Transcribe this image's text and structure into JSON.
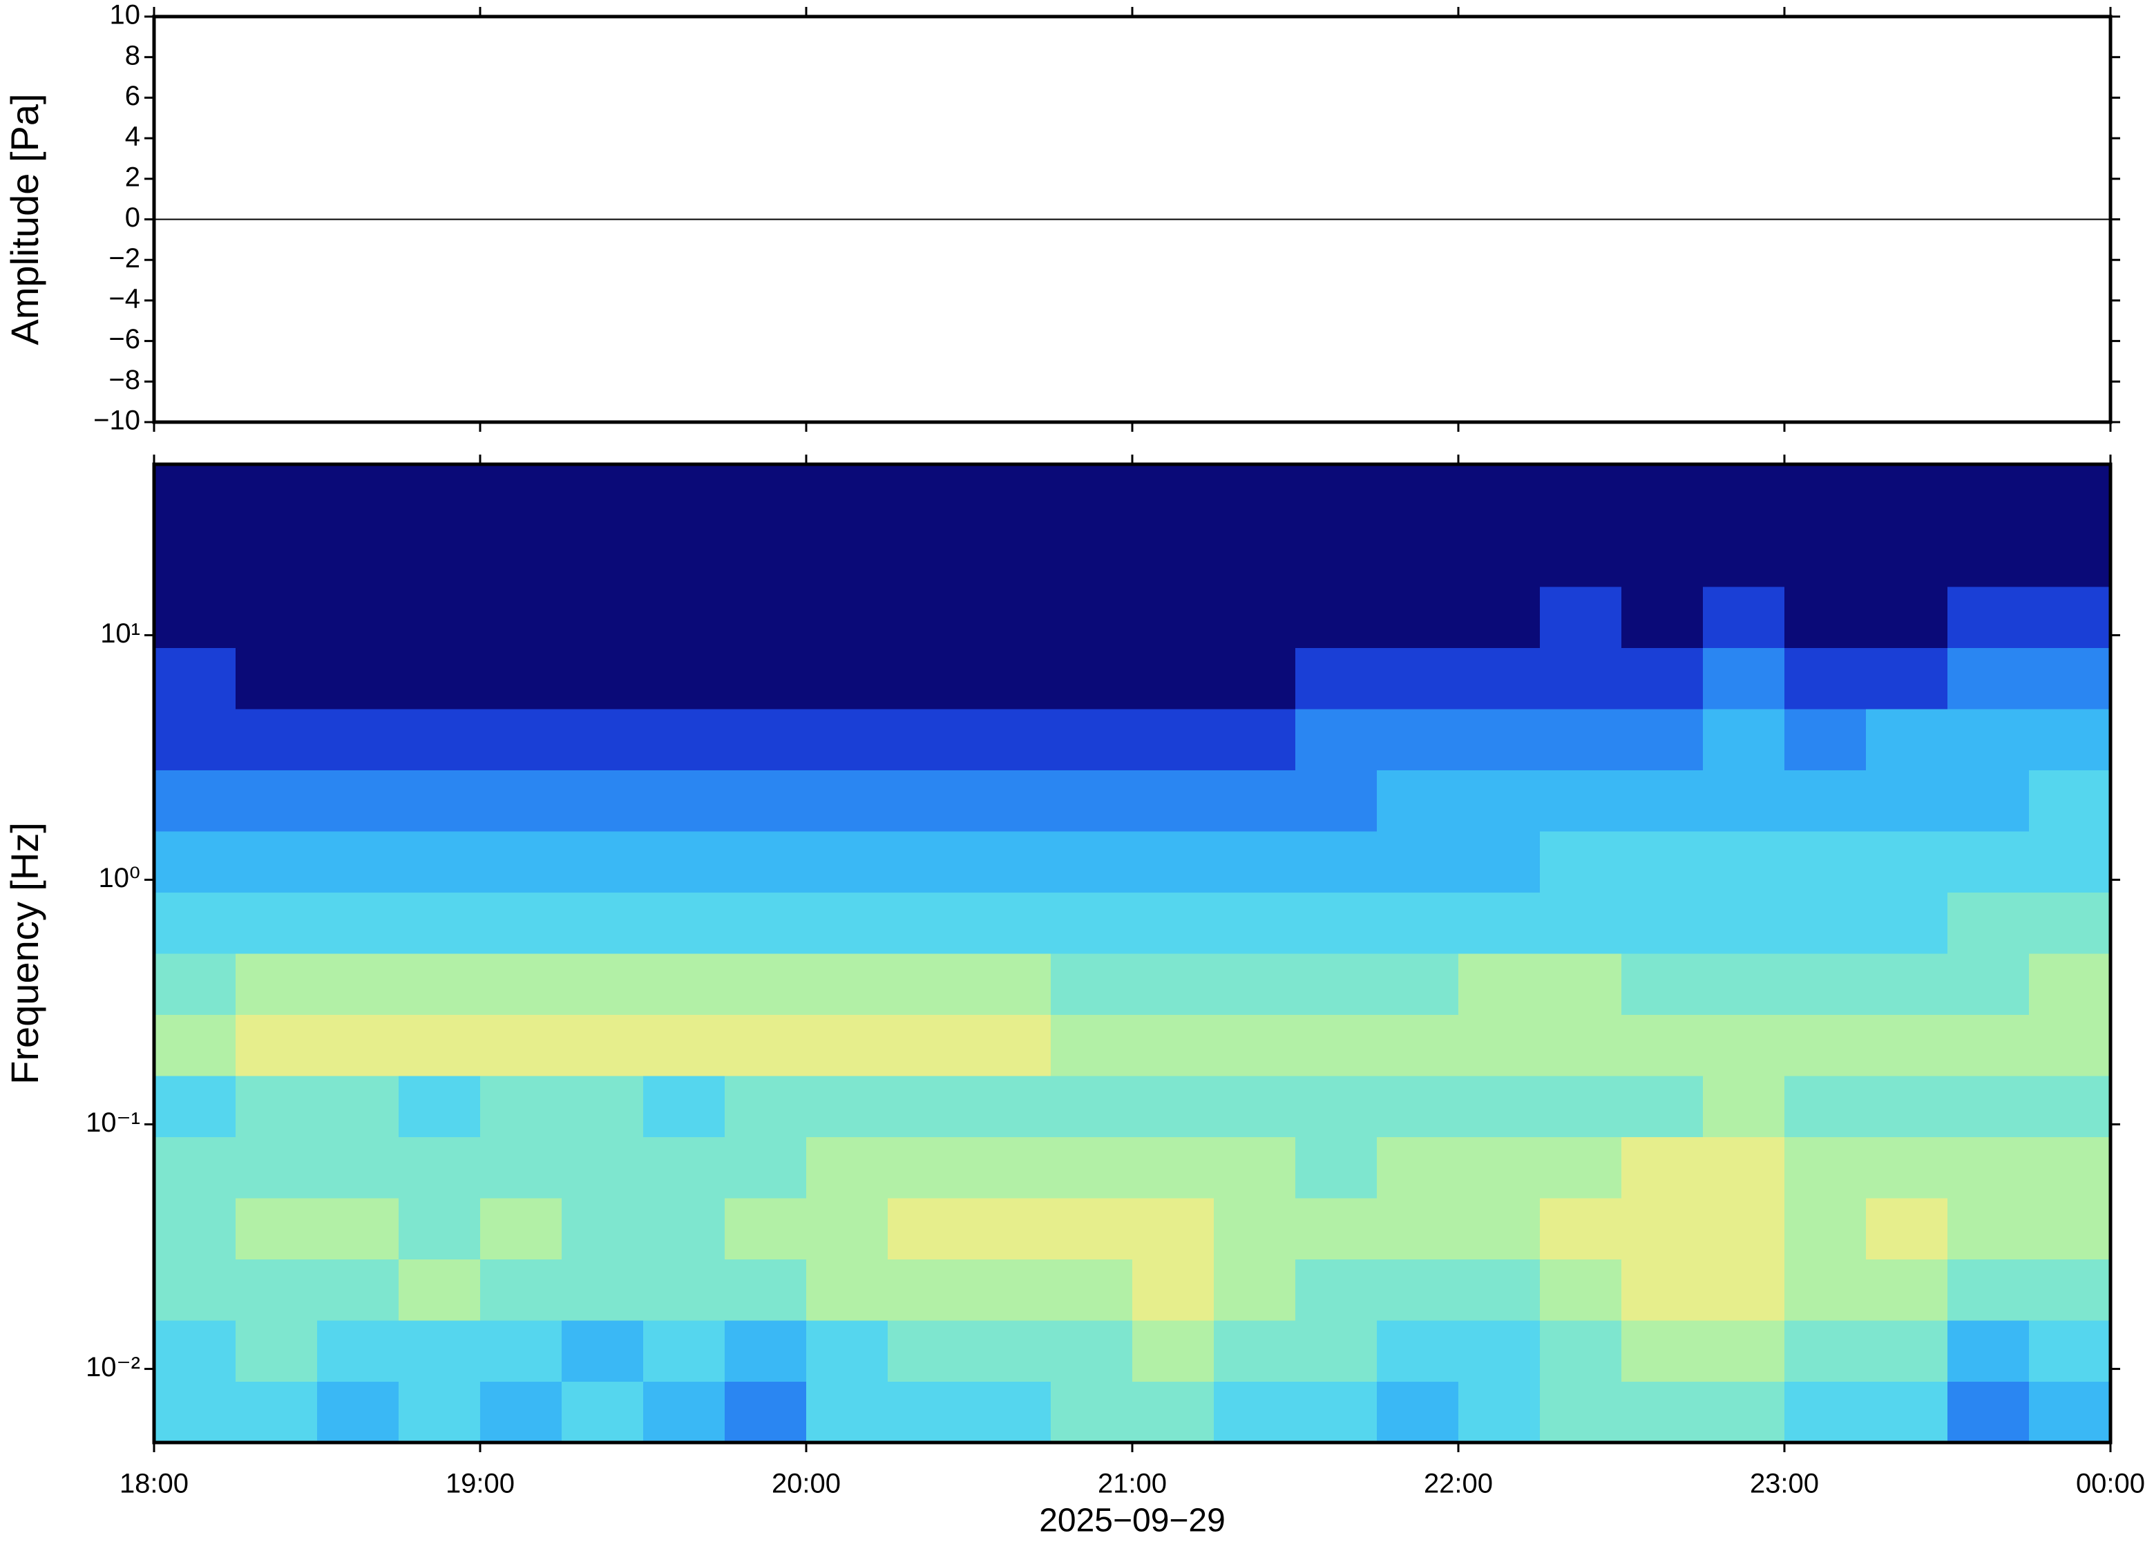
{
  "chart_data": [
    {
      "type": "line",
      "ylabel": "Amplitude [Pa]",
      "color": "#000000",
      "x": [
        18,
        19,
        20,
        21,
        22,
        23,
        24
      ],
      "values": [
        0,
        0,
        0,
        0,
        0,
        0,
        0
      ],
      "xlim": [
        18,
        24
      ],
      "xticks": [
        18,
        19,
        20,
        21,
        22,
        23,
        24
      ],
      "ylim": [
        -10,
        10
      ],
      "yticks": [
        {
          "value": -10,
          "label": "−10"
        },
        {
          "value": -8,
          "label": "−8"
        },
        {
          "value": -6,
          "label": "−6"
        },
        {
          "value": -4,
          "label": "−4"
        },
        {
          "value": -2,
          "label": "−2"
        },
        0,
        2,
        4,
        6,
        8,
        10
      ]
    },
    {
      "type": "heatmap",
      "ylabel": "Frequency [Hz]",
      "xlabel": "2025−09−29",
      "ylog": true,
      "xlim": [
        18,
        24
      ],
      "xticks": [
        {
          "value": 18,
          "label": "18:00"
        },
        {
          "value": 19,
          "label": "19:00"
        },
        {
          "value": 20,
          "label": "20:00"
        },
        {
          "value": 21,
          "label": "21:00"
        },
        {
          "value": 22,
          "label": "22:00"
        },
        {
          "value": 23,
          "label": "23:00"
        },
        {
          "value": 24,
          "label": "00:00"
        }
      ],
      "ylim": [
        0.005,
        50
      ],
      "yticks": [
        {
          "value": 0.01,
          "label": "10⁻²"
        },
        {
          "value": 0.1,
          "label": "10⁻¹"
        },
        {
          "value": 1,
          "label": "10⁰"
        },
        {
          "value": 10,
          "label": "10¹"
        }
      ],
      "colormap": [
        "#0a0a78",
        "#1a3fd6",
        "#2a86f2",
        "#3ab8f5",
        "#55d6ee",
        "#7ee6cf",
        "#b2f0a6",
        "#e6ee8c"
      ],
      "x_edges": [
        18,
        18.25,
        18.5,
        18.75,
        19,
        19.25,
        19.5,
        19.75,
        20,
        20.25,
        20.5,
        20.75,
        21,
        21.25,
        21.5,
        21.75,
        22,
        22.25,
        22.5,
        22.75,
        23,
        23.25,
        23.5,
        23.75,
        24
      ],
      "y_edges": [
        0.005,
        0.0089,
        0.0158,
        0.0281,
        0.05,
        0.089,
        0.158,
        0.281,
        0.5,
        0.889,
        1.58,
        2.81,
        5,
        8.89,
        15.8,
        28.1,
        50
      ],
      "values": [
        [
          4,
          4,
          3,
          4,
          3,
          4,
          3,
          2,
          4,
          4,
          4,
          5,
          5,
          4,
          4,
          3,
          4,
          5,
          5,
          5,
          4,
          4,
          2,
          3
        ],
        [
          4,
          5,
          4,
          4,
          4,
          3,
          4,
          3,
          4,
          5,
          5,
          5,
          6,
          5,
          5,
          4,
          4,
          5,
          6,
          6,
          5,
          5,
          3,
          4
        ],
        [
          5,
          5,
          5,
          6,
          5,
          5,
          5,
          5,
          6,
          6,
          6,
          6,
          7,
          6,
          5,
          5,
          5,
          6,
          7,
          7,
          6,
          6,
          5,
          5
        ],
        [
          5,
          6,
          6,
          5,
          6,
          5,
          5,
          6,
          6,
          7,
          7,
          7,
          7,
          6,
          6,
          6,
          6,
          7,
          7,
          7,
          6,
          7,
          6,
          6
        ],
        [
          5,
          5,
          5,
          5,
          5,
          5,
          5,
          5,
          6,
          6,
          6,
          6,
          6,
          6,
          5,
          6,
          6,
          6,
          7,
          7,
          6,
          6,
          6,
          6
        ],
        [
          4,
          5,
          5,
          4,
          5,
          5,
          4,
          5,
          5,
          5,
          5,
          5,
          5,
          5,
          5,
          5,
          5,
          5,
          5,
          6,
          5,
          5,
          5,
          5
        ],
        [
          6,
          7,
          7,
          7,
          7,
          7,
          7,
          7,
          7,
          7,
          7,
          6,
          6,
          6,
          6,
          6,
          6,
          6,
          6,
          6,
          6,
          6,
          6,
          6
        ],
        [
          5,
          6,
          6,
          6,
          6,
          6,
          6,
          6,
          6,
          6,
          6,
          5,
          5,
          5,
          5,
          5,
          6,
          6,
          5,
          5,
          5,
          5,
          5,
          6
        ],
        [
          4,
          4,
          4,
          4,
          4,
          4,
          4,
          4,
          4,
          4,
          4,
          4,
          4,
          4,
          4,
          4,
          4,
          4,
          4,
          4,
          4,
          4,
          5,
          5
        ],
        [
          3,
          3,
          3,
          3,
          3,
          3,
          3,
          3,
          3,
          3,
          3,
          3,
          3,
          3,
          3,
          3,
          3,
          4,
          4,
          4,
          4,
          4,
          4,
          4
        ],
        [
          2,
          2,
          2,
          2,
          2,
          2,
          2,
          2,
          2,
          2,
          2,
          2,
          2,
          2,
          2,
          3,
          3,
          3,
          3,
          3,
          3,
          3,
          3,
          4
        ],
        [
          1,
          1,
          1,
          1,
          1,
          1,
          1,
          1,
          1,
          1,
          1,
          1,
          1,
          1,
          2,
          2,
          2,
          2,
          2,
          3,
          2,
          3,
          3,
          3
        ],
        [
          1,
          0,
          0,
          0,
          0,
          0,
          0,
          0,
          0,
          0,
          0,
          0,
          0,
          0,
          1,
          1,
          1,
          1,
          1,
          2,
          1,
          1,
          2,
          2
        ],
        [
          0,
          0,
          0,
          0,
          0,
          0,
          0,
          0,
          0,
          0,
          0,
          0,
          0,
          0,
          0,
          0,
          0,
          1,
          0,
          1,
          0,
          0,
          1,
          1
        ],
        [
          0,
          0,
          0,
          0,
          0,
          0,
          0,
          0,
          0,
          0,
          0,
          0,
          0,
          0,
          0,
          0,
          0,
          0,
          0,
          0,
          0,
          0,
          0,
          0
        ],
        [
          0,
          0,
          0,
          0,
          0,
          0,
          0,
          0,
          0,
          0,
          0,
          0,
          0,
          0,
          0,
          0,
          0,
          0,
          0,
          0,
          0,
          0,
          0,
          0
        ]
      ]
    }
  ]
}
